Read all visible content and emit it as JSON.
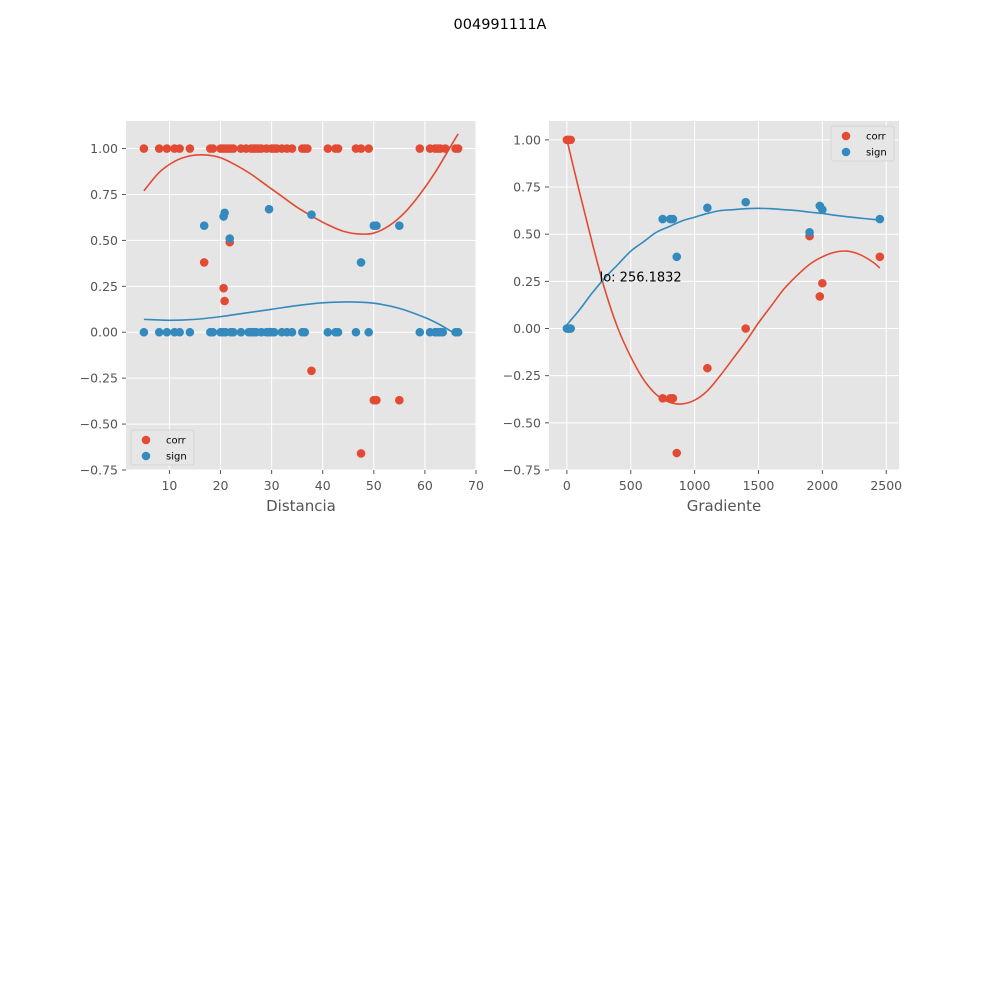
{
  "figure": {
    "suptitle": "004991111A"
  },
  "colors": {
    "corr": "#E24A33",
    "sign": "#348ABD",
    "panel_bg": "#E5E5E5",
    "grid": "#ffffff"
  },
  "chart_data": [
    {
      "type": "scatter",
      "xlabel": "Distancia",
      "xlim": [
        1.5,
        70
      ],
      "ylim": [
        -0.75,
        1.15
      ],
      "xticks": [
        10,
        20,
        30,
        40,
        50,
        60,
        70
      ],
      "yticks": [
        -0.75,
        -0.5,
        -0.25,
        0.0,
        0.25,
        0.5,
        0.75,
        1.0
      ],
      "ytick_labels": [
        "−0.75",
        "−0.50",
        "−0.25",
        "0.00",
        "0.25",
        "0.50",
        "0.75",
        "1.00"
      ],
      "xtick_labels": [
        "10",
        "20",
        "30",
        "40",
        "50",
        "60",
        "70"
      ],
      "legend": {
        "location": "lower-left",
        "entries": [
          "corr",
          "sign"
        ]
      },
      "series": [
        {
          "name": "corr",
          "x": [
            5,
            8,
            9.5,
            11,
            12,
            14,
            18,
            18.5,
            20,
            20.5,
            21,
            21.5,
            22,
            22.5,
            24,
            25,
            26,
            26.5,
            27,
            27.5,
            28,
            29,
            30,
            30.5,
            31,
            32,
            33,
            34,
            36,
            36.5,
            37,
            41,
            42.5,
            43,
            46.5,
            47.5,
            49,
            59,
            61,
            62,
            62.5,
            63,
            64,
            66,
            66.5,
            16.8,
            20.6,
            20.8,
            21.8,
            29.5,
            37.8,
            47.5,
            50,
            50.5,
            55
          ],
          "y": [
            1,
            1,
            1,
            1,
            1,
            1,
            1,
            1,
            1,
            1,
            1,
            1,
            1,
            1,
            1,
            1,
            1,
            1,
            1,
            1,
            1,
            1,
            1,
            1,
            1,
            1,
            1,
            1,
            1,
            1,
            1,
            1,
            1,
            1,
            1,
            1,
            1,
            1,
            1,
            1,
            1,
            1,
            1,
            1,
            1,
            0.38,
            0.24,
            0.17,
            0.49,
            0,
            -0.21,
            -0.66,
            -0.37,
            -0.37,
            -0.37
          ]
        },
        {
          "name": "sign",
          "x": [
            5,
            8,
            9.5,
            11,
            12,
            14,
            18,
            18.5,
            20,
            20.5,
            21,
            22,
            22.5,
            24,
            25.5,
            26,
            26.5,
            27,
            28,
            29,
            29.5,
            30,
            30.5,
            32,
            33,
            34,
            36,
            36.5,
            41,
            42.5,
            43,
            46.5,
            49,
            59,
            61,
            62,
            62.5,
            63,
            63.5,
            66,
            66.5,
            16.8,
            20.6,
            20.8,
            21.8,
            29.5,
            37.8,
            47.5,
            50,
            50.5,
            55
          ],
          "y": [
            0,
            0,
            0,
            0,
            0,
            0,
            0,
            0,
            0,
            0,
            0,
            0,
            0,
            0,
            0,
            0,
            0,
            0,
            0,
            0,
            0,
            0,
            0,
            0,
            0,
            0,
            0,
            0,
            0,
            0,
            0,
            0,
            0,
            0,
            0,
            0,
            0,
            0,
            0,
            0,
            0,
            0.58,
            0.63,
            0.65,
            0.51,
            0.67,
            0.64,
            0.38,
            0.58,
            0.58,
            0.58
          ]
        }
      ],
      "fits": [
        {
          "series": "corr",
          "x": [
            5,
            8,
            11,
            14,
            17,
            20,
            23,
            26,
            29,
            32,
            35,
            38,
            41,
            44,
            47,
            50,
            53,
            56,
            59,
            62,
            65,
            66.5
          ],
          "y": [
            0.77,
            0.87,
            0.93,
            0.96,
            0.965,
            0.95,
            0.91,
            0.86,
            0.8,
            0.74,
            0.68,
            0.63,
            0.585,
            0.55,
            0.535,
            0.54,
            0.58,
            0.65,
            0.75,
            0.87,
            1.01,
            1.08
          ]
        },
        {
          "series": "sign",
          "x": [
            5,
            10,
            15,
            20,
            25,
            30,
            35,
            40,
            45,
            50,
            55,
            60,
            63,
            66
          ],
          "y": [
            0.07,
            0.065,
            0.07,
            0.085,
            0.105,
            0.125,
            0.145,
            0.16,
            0.165,
            0.158,
            0.13,
            0.08,
            0.04,
            -0.01
          ]
        }
      ]
    },
    {
      "type": "scatter",
      "xlabel": "Gradiente",
      "xlim": [
        -140,
        2600
      ],
      "ylim": [
        -0.75,
        1.1
      ],
      "xticks": [
        0,
        500,
        1000,
        1500,
        2000,
        2500
      ],
      "yticks": [
        -0.75,
        -0.5,
        -0.25,
        0.0,
        0.25,
        0.5,
        0.75,
        1.0
      ],
      "ytick_labels": [
        "−0.75",
        "−0.50",
        "−0.25",
        "0.00",
        "0.25",
        "0.50",
        "0.75",
        "1.00"
      ],
      "xtick_labels": [
        "0",
        "500",
        "1000",
        "1500",
        "2000",
        "2500"
      ],
      "legend": {
        "location": "top-right",
        "entries": [
          "corr",
          "sign"
        ]
      },
      "annotation": {
        "text": "lo: 256.1832",
        "x": 256.1832,
        "y": 0.25
      },
      "series": [
        {
          "name": "corr",
          "x": [
            0,
            10,
            20,
            30,
            750,
            810,
            830,
            860,
            1100,
            1400,
            1900,
            1980,
            2000,
            2450
          ],
          "y": [
            1,
            1,
            1,
            1,
            -0.37,
            -0.37,
            -0.37,
            -0.66,
            -0.21,
            0,
            0.49,
            0.17,
            0.24,
            0.38
          ]
        },
        {
          "name": "sign",
          "x": [
            0,
            10,
            20,
            30,
            750,
            810,
            830,
            860,
            1100,
            1400,
            1900,
            1980,
            2000,
            2450
          ],
          "y": [
            0,
            0,
            0,
            0,
            0.58,
            0.58,
            0.58,
            0.38,
            0.64,
            0.67,
            0.51,
            0.65,
            0.63,
            0.58
          ]
        }
      ],
      "fits": [
        {
          "series": "corr",
          "x": [
            0,
            100,
            200,
            300,
            400,
            500,
            600,
            700,
            800,
            900,
            1000,
            1100,
            1200,
            1300,
            1400,
            1500,
            1600,
            1700,
            1800,
            1900,
            2000,
            2100,
            2200,
            2300,
            2400,
            2450
          ],
          "y": [
            1.0,
            0.72,
            0.45,
            0.2,
            0.0,
            -0.15,
            -0.27,
            -0.35,
            -0.39,
            -0.4,
            -0.38,
            -0.33,
            -0.25,
            -0.16,
            -0.07,
            0.03,
            0.12,
            0.21,
            0.28,
            0.34,
            0.38,
            0.405,
            0.41,
            0.39,
            0.35,
            0.32
          ]
        },
        {
          "series": "sign",
          "x": [
            0,
            100,
            200,
            300,
            400,
            500,
            600,
            700,
            800,
            900,
            1000,
            1100,
            1200,
            1300,
            1400,
            1500,
            1600,
            1700,
            1800,
            1900,
            2000,
            2100,
            2200,
            2300,
            2400,
            2450
          ],
          "y": [
            0.02,
            0.1,
            0.19,
            0.27,
            0.34,
            0.41,
            0.46,
            0.51,
            0.54,
            0.57,
            0.59,
            0.61,
            0.625,
            0.63,
            0.635,
            0.637,
            0.635,
            0.63,
            0.625,
            0.617,
            0.61,
            0.6,
            0.592,
            0.585,
            0.578,
            0.575
          ]
        }
      ]
    }
  ]
}
